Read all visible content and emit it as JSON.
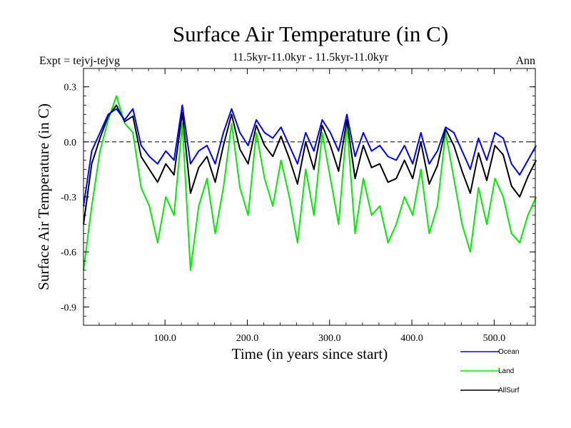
{
  "chart_data": {
    "type": "line",
    "title": "Surface Air Temperature (in C)",
    "subtitle": "11.5kyr-11.0kyr - 11.5kyr-11.0kyr",
    "experiment_label": "Expt = tejvj-tejvg",
    "season_label": "Ann",
    "xlabel": "Time (in years since start)",
    "ylabel": "Surface Air Temperature (in C)",
    "xlim": [
      1,
      550
    ],
    "ylim": [
      -1.0,
      0.4
    ],
    "xticks": [
      100,
      200,
      300,
      400,
      500
    ],
    "xtick_labels": [
      "100.0",
      "200.0",
      "300.0",
      "400.0",
      "500.0"
    ],
    "yticks": [
      0.3,
      0.0,
      -0.3,
      -0.6,
      -0.9
    ],
    "ytick_labels": [
      "0.3",
      "0.0",
      "-0.3",
      "-0.6",
      "-0.9"
    ],
    "reference_line": 0.0,
    "series": [
      {
        "name": "Ocean",
        "color": "#0000ff",
        "x_step": 10,
        "x_start": 1,
        "values": [
          -0.35,
          -0.05,
          0.05,
          0.15,
          0.18,
          0.12,
          0.18,
          -0.02,
          -0.08,
          -0.12,
          -0.05,
          -0.1,
          0.2,
          -0.12,
          -0.05,
          -0.02,
          -0.12,
          0.05,
          0.18,
          0.05,
          -0.02,
          0.12,
          0.05,
          0.02,
          0.08,
          -0.02,
          -0.12,
          0.05,
          -0.05,
          0.12,
          0.05,
          -0.05,
          0.15,
          -0.08,
          0.05,
          -0.05,
          -0.02,
          -0.08,
          -0.1,
          -0.02,
          -0.12,
          0.05,
          -0.12,
          -0.05,
          0.08,
          0.05,
          -0.05,
          -0.15,
          0.02,
          -0.1,
          0.05,
          0.02,
          -0.12,
          -0.18,
          -0.1,
          -0.02
        ]
      },
      {
        "name": "Land",
        "color": "#00ee00",
        "x_step": 10,
        "x_start": 1,
        "values": [
          -0.7,
          -0.35,
          -0.05,
          0.12,
          0.25,
          0.1,
          0.05,
          -0.25,
          -0.35,
          -0.55,
          -0.3,
          -0.4,
          0.1,
          -0.7,
          -0.35,
          -0.2,
          -0.5,
          -0.25,
          0.1,
          -0.25,
          -0.4,
          0.05,
          -0.2,
          -0.35,
          -0.1,
          -0.3,
          -0.55,
          -0.15,
          -0.4,
          0.05,
          -0.2,
          -0.45,
          0.1,
          -0.5,
          -0.2,
          -0.4,
          -0.35,
          -0.55,
          -0.45,
          -0.3,
          -0.4,
          -0.15,
          -0.5,
          -0.35,
          0.05,
          -0.2,
          -0.45,
          -0.6,
          -0.25,
          -0.45,
          -0.2,
          -0.3,
          -0.5,
          -0.55,
          -0.4,
          -0.3
        ]
      },
      {
        "name": "AllSurf",
        "color": "#000000",
        "x_step": 10,
        "x_start": 1,
        "values": [
          -0.45,
          -0.12,
          0.02,
          0.14,
          0.2,
          0.11,
          0.14,
          -0.08,
          -0.15,
          -0.22,
          -0.12,
          -0.18,
          0.16,
          -0.28,
          -0.14,
          -0.08,
          -0.22,
          -0.02,
          0.15,
          -0.04,
          -0.12,
          0.09,
          -0.02,
          -0.08,
          0.03,
          -0.09,
          -0.23,
          0.0,
          -0.15,
          0.09,
          -0.02,
          -0.16,
          0.12,
          -0.2,
          -0.02,
          -0.14,
          -0.12,
          -0.22,
          -0.2,
          -0.1,
          -0.2,
          0.0,
          -0.23,
          -0.13,
          0.07,
          -0.02,
          -0.16,
          -0.28,
          -0.06,
          -0.21,
          -0.02,
          -0.07,
          -0.24,
          -0.3,
          -0.19,
          -0.1
        ]
      }
    ],
    "legend": {
      "position": "bottom-right",
      "entries": [
        {
          "label": "Ocean",
          "color": "#0000ff"
        },
        {
          "label": "Land",
          "color": "#00ee00"
        },
        {
          "label": "AllSurf",
          "color": "#000000"
        }
      ]
    }
  }
}
